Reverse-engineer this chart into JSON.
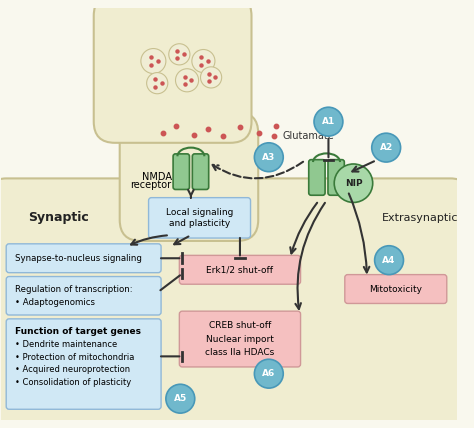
{
  "bg_color": "#f9f8ee",
  "neuron_body_color": "#f0edd0",
  "neuron_outline": "#c8c090",
  "receptor_color": "#88c088",
  "blue_box_color": "#d0e8f5",
  "pink_box_color": "#f5c0c0",
  "circle_color": "#70b8cc",
  "dot_color": "#cc5555",
  "synaptic_label": "Synaptic",
  "extrasynaptic_label": "Extrasynaptic",
  "nmda_label1": "NMDA",
  "nmda_label2": "receptor",
  "glutamate_label": "Glutamate",
  "nip_label": "NIP",
  "local_signaling_text": "Local signaling\nand plasticity",
  "synapse_nucleus_text": "Synapse-to-nucleus signaling",
  "erk_text": "Erk1/2 shut-off",
  "creb_line1": "CREB shut-off",
  "creb_line2": "Nuclear import",
  "creb_line3": "class IIa HDACs",
  "mitotox_text": "Mitotoxicity",
  "circles": [
    "A1",
    "A2",
    "A3",
    "A4",
    "A5",
    "A6"
  ],
  "arrow_color": "#333333"
}
